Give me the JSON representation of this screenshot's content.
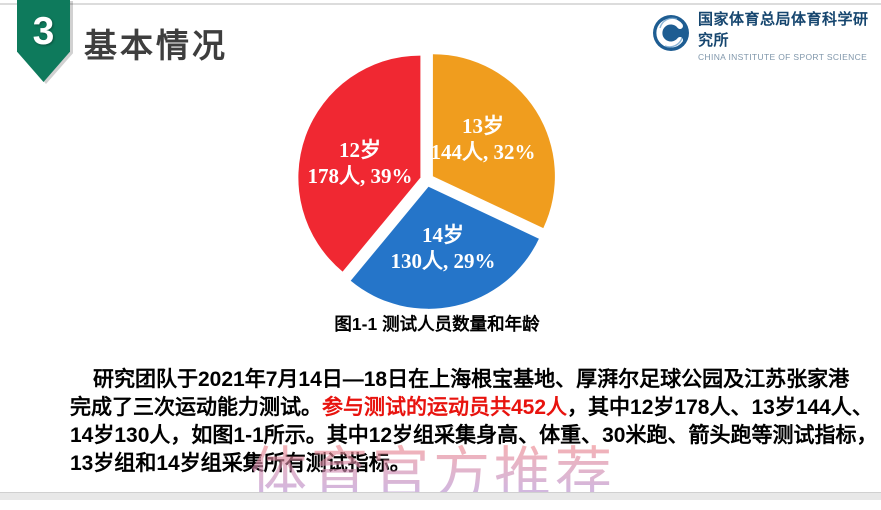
{
  "slide": {
    "section_number": "3",
    "title": "基本情况"
  },
  "logo": {
    "name_cn": "国家体育总局体育科学研究所",
    "name_en": "CHINA INSTITUTE OF SPORT SCIENCE",
    "emblem_color": "#1e5d92"
  },
  "chart_data": {
    "type": "pie",
    "title": "图1-1 测试人员数量和年龄",
    "direction": "clockwise",
    "start_angle_deg": 0,
    "exploded": true,
    "total_people": 452,
    "slices": [
      {
        "label": "13岁",
        "people": 144,
        "percent": 32,
        "value_text": "144人, 32%",
        "color": "#f09d1e"
      },
      {
        "label": "14岁",
        "people": 130,
        "percent": 29,
        "value_text": "130人, 29%",
        "color": "#2575c9"
      },
      {
        "label": "12岁",
        "people": 178,
        "percent": 39,
        "value_text": "178人, 39%",
        "color": "#f02832"
      }
    ]
  },
  "paragraph": {
    "highlight_color": "#e8130e",
    "lines": [
      [
        {
          "text": "研究团队于2021年7月14日—18日在上海根宝基地、厚湃尔足球公园及江苏张家港",
          "red": false
        }
      ],
      [
        {
          "text": "完成了三次运动能力测试。",
          "red": false
        },
        {
          "text": "参与测试的运动员共452人",
          "red": true
        },
        {
          "text": "，其中12岁178人、13岁144人、",
          "red": false
        }
      ],
      [
        {
          "text": "14岁130人，如图1-1所示。其中12岁组采集身高、体重、30米跑、箭头跑等测试指标，",
          "red": false
        }
      ],
      [
        {
          "text": "13岁组和14岁组采集所有测试指标。",
          "red": false
        }
      ]
    ]
  },
  "watermark": {
    "text": "体育官方推荐"
  }
}
